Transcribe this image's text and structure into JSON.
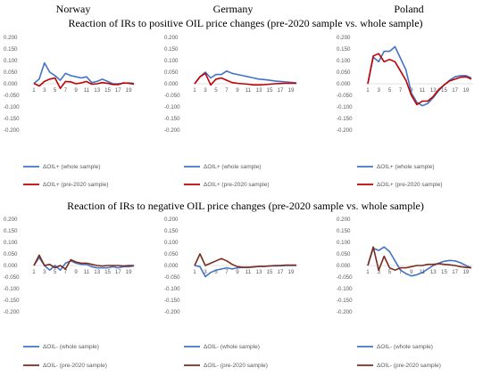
{
  "figure": {
    "countries": [
      "Norway",
      "Germany",
      "Poland"
    ],
    "titles": [
      "Reaction of IRs to positive OIL price changes (pre-2020 sample vs. whole sample)",
      "Reaction of IRs to negative OIL price changes (pre-2020 sample vs. whole sample)"
    ]
  },
  "colors": {
    "blue": "#4472C4",
    "red": "#C00000",
    "darkred": "#7B2C1C"
  },
  "chart_data": [
    {
      "type": "line",
      "row": 0,
      "col": 0,
      "country": "Norway",
      "x": [
        1,
        2,
        3,
        4,
        5,
        6,
        7,
        8,
        9,
        10,
        11,
        12,
        13,
        14,
        15,
        16,
        17,
        18,
        19,
        20
      ],
      "ylim": [
        -0.2,
        0.2
      ],
      "yticks": [
        "0.200",
        "0.150",
        "0.100",
        "0.050",
        "0.000",
        "-0.050",
        "-0.100",
        "-0.150",
        "-0.200"
      ],
      "xticks": [
        "1",
        "3",
        "5",
        "7",
        "9",
        "11",
        "13",
        "15",
        "17",
        "19"
      ],
      "series": [
        {
          "name": "ΔOIL+ (whole sample)",
          "color": "#4472C4",
          "values": [
            0.002,
            0.02,
            0.09,
            0.05,
            0.035,
            0.015,
            0.045,
            0.035,
            0.03,
            0.025,
            0.03,
            0.005,
            0.01,
            0.02,
            0.01,
            0.0,
            0.0,
            0.002,
            0.004,
            0.002
          ]
        },
        {
          "name": "ΔOIL+ (pre-2020 sample)",
          "color": "#C00000",
          "values": [
            0.002,
            -0.01,
            0.01,
            0.02,
            0.025,
            -0.02,
            0.01,
            0.008,
            0.0,
            0.004,
            0.01,
            -0.002,
            0.0,
            0.005,
            0.002,
            -0.003,
            -0.004,
            0.004,
            0.002,
            -0.002
          ]
        }
      ]
    },
    {
      "type": "line",
      "row": 0,
      "col": 1,
      "country": "Germany",
      "x": [
        1,
        2,
        3,
        4,
        5,
        6,
        7,
        8,
        9,
        10,
        11,
        12,
        13,
        14,
        15,
        16,
        17,
        18,
        19,
        20
      ],
      "ylim": [
        -0.2,
        0.2
      ],
      "yticks": [
        "0.200",
        "0.150",
        "0.100",
        "0.050",
        "0.000",
        "-0.050",
        "-0.100",
        "-0.150",
        "-0.200"
      ],
      "xticks": [
        "1",
        "3",
        "5",
        "7",
        "9",
        "11",
        "13",
        "15",
        "17",
        "19"
      ],
      "series": [
        {
          "name": "ΔOIL+ (whole sample)",
          "color": "#4472C4",
          "values": [
            0.0,
            0.03,
            0.05,
            0.025,
            0.04,
            0.04,
            0.055,
            0.045,
            0.04,
            0.035,
            0.03,
            0.025,
            0.02,
            0.018,
            0.015,
            0.012,
            0.01,
            0.008,
            0.006,
            0.004
          ]
        },
        {
          "name": "ΔOIL+ (pre-2020 sample)",
          "color": "#C00000",
          "values": [
            0.0,
            0.03,
            0.045,
            -0.005,
            0.02,
            0.025,
            0.015,
            0.005,
            0.002,
            0.0,
            -0.002,
            -0.005,
            -0.005,
            -0.004,
            -0.002,
            0.0,
            0.001,
            0.002,
            0.002,
            0.002
          ]
        }
      ]
    },
    {
      "type": "line",
      "row": 0,
      "col": 2,
      "country": "Poland",
      "x": [
        1,
        2,
        3,
        4,
        5,
        6,
        7,
        8,
        9,
        10,
        11,
        12,
        13,
        14,
        15,
        16,
        17,
        18,
        19,
        20
      ],
      "ylim": [
        -0.2,
        0.2
      ],
      "yticks": [
        "0.200",
        "0.150",
        "0.100",
        "0.050",
        "0.000",
        "-0.050",
        "-0.100",
        "-0.150",
        "-0.200"
      ],
      "xticks": [
        "1",
        "3",
        "5",
        "7",
        "9",
        "11",
        "13",
        "15",
        "17",
        "19"
      ],
      "series": [
        {
          "name": "ΔOIL+ (whole sample)",
          "color": "#4472C4",
          "values": [
            0.0,
            0.115,
            0.095,
            0.14,
            0.14,
            0.16,
            0.11,
            0.06,
            -0.04,
            -0.08,
            -0.095,
            -0.085,
            -0.06,
            -0.03,
            -0.005,
            0.015,
            0.03,
            0.035,
            0.035,
            0.025
          ]
        },
        {
          "name": "ΔOIL+ (pre-2020 sample)",
          "color": "#C00000",
          "values": [
            0.0,
            0.12,
            0.13,
            0.095,
            0.105,
            0.095,
            0.055,
            0.015,
            -0.05,
            -0.09,
            -0.075,
            -0.075,
            -0.055,
            -0.025,
            -0.005,
            0.012,
            0.02,
            0.028,
            0.03,
            0.02
          ]
        }
      ]
    },
    {
      "type": "line",
      "row": 1,
      "col": 0,
      "country": "Norway",
      "x": [
        1,
        2,
        3,
        4,
        5,
        6,
        7,
        8,
        9,
        10,
        11,
        12,
        13,
        14,
        15,
        16,
        17,
        18,
        19,
        20
      ],
      "ylim": [
        -0.2,
        0.2
      ],
      "yticks": [
        "0.200",
        "0.150",
        "0.100",
        "0.050",
        "0.000",
        "-0.050",
        "-0.100",
        "-0.150",
        "-0.200"
      ],
      "xticks": [
        "1",
        "3",
        "5",
        "7",
        "9",
        "11",
        "13",
        "15",
        "17",
        "19"
      ],
      "series": [
        {
          "name": "ΔOIL- (whole sample)",
          "color": "#4472C4",
          "values": [
            0.0,
            0.035,
            0.0,
            -0.02,
            0.0,
            -0.02,
            0.01,
            0.02,
            0.01,
            0.005,
            0.005,
            -0.005,
            -0.01,
            -0.01,
            -0.01,
            -0.005,
            -0.01,
            -0.005,
            -0.005,
            -0.002
          ]
        },
        {
          "name": "ΔOIL- (pre-2020 sample)",
          "color": "#7B2C1C",
          "values": [
            0.0,
            0.045,
            0.0,
            0.005,
            -0.01,
            0.0,
            -0.015,
            0.025,
            0.015,
            0.01,
            0.01,
            0.005,
            0.0,
            -0.002,
            0.0,
            0.0,
            0.0,
            -0.002,
            0.0,
            0.0
          ]
        }
      ]
    },
    {
      "type": "line",
      "row": 1,
      "col": 1,
      "country": "Germany",
      "x": [
        1,
        2,
        3,
        4,
        5,
        6,
        7,
        8,
        9,
        10,
        11,
        12,
        13,
        14,
        15,
        16,
        17,
        18,
        19,
        20
      ],
      "ylim": [
        -0.2,
        0.2
      ],
      "yticks": [
        "0.200",
        "0.150",
        "0.100",
        "0.050",
        "0.000",
        "-0.050",
        "-0.100",
        "-0.150",
        "-0.200"
      ],
      "xticks": [
        "1",
        "3",
        "5",
        "7",
        "9",
        "11",
        "13",
        "15",
        "17",
        "19"
      ],
      "series": [
        {
          "name": "ΔOIL- (whole sample)",
          "color": "#4472C4",
          "values": [
            0.0,
            -0.005,
            -0.048,
            -0.03,
            -0.02,
            -0.015,
            -0.01,
            -0.015,
            -0.01,
            -0.008,
            -0.008,
            -0.006,
            -0.004,
            -0.003,
            -0.002,
            -0.002,
            -0.001,
            0.0,
            0.0,
            0.0
          ]
        },
        {
          "name": "ΔOIL- (pre-2020 sample)",
          "color": "#7B2C1C",
          "values": [
            0.0,
            0.05,
            0.0,
            0.01,
            0.02,
            0.03,
            0.02,
            0.005,
            -0.005,
            -0.008,
            -0.008,
            -0.006,
            -0.004,
            -0.004,
            -0.002,
            0.0,
            0.0,
            0.002,
            0.002,
            0.002
          ]
        }
      ]
    },
    {
      "type": "line",
      "row": 1,
      "col": 2,
      "country": "Poland",
      "x": [
        1,
        2,
        3,
        4,
        5,
        6,
        7,
        8,
        9,
        10,
        11,
        12,
        13,
        14,
        15,
        16,
        17,
        18,
        19,
        20
      ],
      "ylim": [
        -0.2,
        0.2
      ],
      "yticks": [
        "0.200",
        "0.150",
        "0.100",
        "0.050",
        "0.000",
        "-0.050",
        "-0.100",
        "-0.150",
        "-0.200"
      ],
      "xticks": [
        "1",
        "3",
        "5",
        "7",
        "9",
        "11",
        "13",
        "15",
        "17",
        "19"
      ],
      "series": [
        {
          "name": "ΔOIL- (whole sample)",
          "color": "#4472C4",
          "values": [
            0.0,
            0.075,
            0.065,
            0.08,
            0.06,
            0.02,
            -0.02,
            -0.035,
            -0.045,
            -0.04,
            -0.03,
            -0.015,
            0.0,
            0.01,
            0.018,
            0.022,
            0.02,
            0.012,
            0.0,
            -0.01
          ]
        },
        {
          "name": "ΔOIL- (pre-2020 sample)",
          "color": "#7B2C1C",
          "values": [
            0.0,
            0.08,
            -0.02,
            0.04,
            -0.01,
            -0.02,
            -0.01,
            -0.01,
            -0.005,
            0.0,
            0.0,
            0.005,
            0.005,
            0.008,
            0.005,
            0.003,
            0.0,
            -0.005,
            -0.008,
            -0.01
          ]
        }
      ]
    }
  ]
}
